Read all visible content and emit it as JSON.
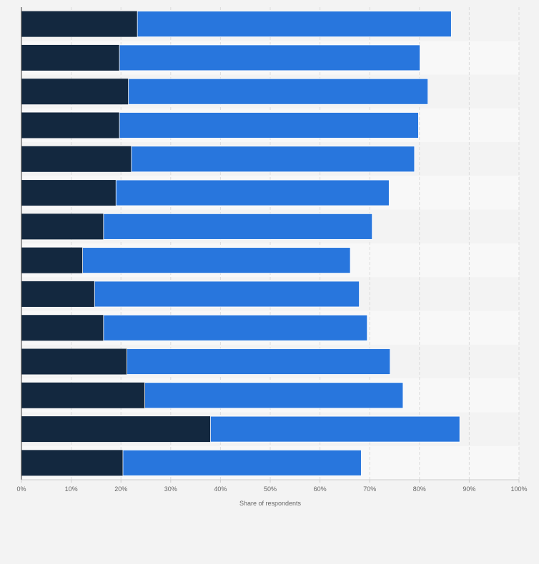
{
  "chart_data": {
    "type": "bar",
    "orientation": "horizontal",
    "stacked": true,
    "xlabel": "Share of respondents",
    "xlim": [
      0,
      100
    ],
    "x_ticks": [
      "0%",
      "10%",
      "20%",
      "30%",
      "40%",
      "50%",
      "60%",
      "70%",
      "80%",
      "90%",
      "100%"
    ],
    "grid": true,
    "series": [
      {
        "color": "#13283f",
        "values": [
          23.3,
          19.7,
          21.5,
          19.7,
          22.1,
          19.0,
          16.5,
          12.3,
          14.7,
          16.5,
          21.2,
          24.8,
          38.0,
          20.4
        ]
      },
      {
        "color": "#2876dd",
        "values": [
          63.1,
          60.4,
          60.2,
          60.1,
          56.9,
          54.9,
          54.0,
          53.8,
          53.2,
          53.0,
          52.9,
          51.9,
          50.1,
          47.9
        ]
      }
    ]
  }
}
